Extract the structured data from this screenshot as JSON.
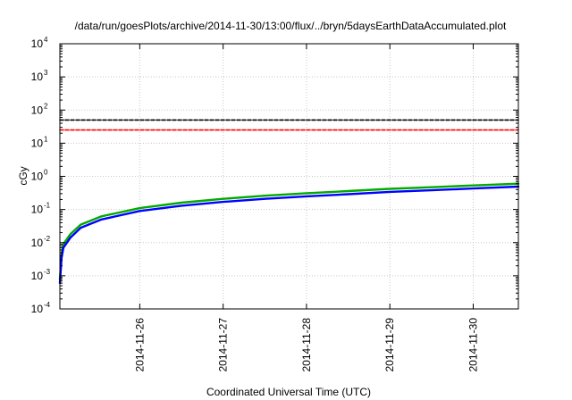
{
  "chart_data": {
    "type": "line",
    "title": "/data/run/goesPlots/archive/2014-11-30/13:00/flux/../bryn/5daysEarthDataAccumulated.plot",
    "xlabel": "Coordinated Universal Time (UTC)",
    "ylabel": "cGy",
    "x_scale": "time",
    "y_scale": "log",
    "xlim": [
      "2014-11-25 01:00",
      "2014-11-30 13:00"
    ],
    "ylim": [
      0.0001,
      10000
    ],
    "grid": true,
    "legend": "none",
    "x_ticks": [
      "2014-11-26",
      "2014-11-27",
      "2014-11-28",
      "2014-11-29",
      "2014-11-30"
    ],
    "y_ticks": [
      {
        "value": 0.0001,
        "base": "10",
        "exp": "-4"
      },
      {
        "value": 0.001,
        "base": "10",
        "exp": "-3"
      },
      {
        "value": 0.01,
        "base": "10",
        "exp": "-2"
      },
      {
        "value": 0.1,
        "base": "10",
        "exp": "-1"
      },
      {
        "value": 1,
        "base": "10",
        "exp": "0"
      },
      {
        "value": 10,
        "base": "10",
        "exp": "1"
      },
      {
        "value": 100,
        "base": "10",
        "exp": "2"
      },
      {
        "value": 1000,
        "base": "10",
        "exp": "3"
      },
      {
        "value": 10000,
        "base": "10",
        "exp": "4"
      }
    ],
    "series": [
      {
        "color": "#00aa00",
        "style": "solid",
        "x": [
          "2014-11-25 01:00",
          "2014-11-25 01:30",
          "2014-11-25 02:00",
          "2014-11-25 04:00",
          "2014-11-25 07:00",
          "2014-11-25 13:00",
          "2014-11-26 00:00",
          "2014-11-26 12:00",
          "2014-11-27 00:00",
          "2014-11-27 12:00",
          "2014-11-28 00:00",
          "2014-11-28 12:00",
          "2014-11-29 00:00",
          "2014-11-29 12:00",
          "2014-11-30 00:00",
          "2014-11-30 13:00"
        ],
        "values": [
          0.0008,
          0.0045,
          0.009,
          0.018,
          0.035,
          0.062,
          0.11,
          0.16,
          0.21,
          0.26,
          0.31,
          0.36,
          0.42,
          0.47,
          0.53,
          0.6
        ]
      },
      {
        "color": "#0000ff",
        "style": "solid",
        "x": [
          "2014-11-25 01:00",
          "2014-11-25 01:30",
          "2014-11-25 02:00",
          "2014-11-25 04:00",
          "2014-11-25 07:00",
          "2014-11-25 13:00",
          "2014-11-26 00:00",
          "2014-11-26 12:00",
          "2014-11-27 00:00",
          "2014-11-27 12:00",
          "2014-11-28 00:00",
          "2014-11-28 12:00",
          "2014-11-29 00:00",
          "2014-11-29 12:00",
          "2014-11-30 00:00",
          "2014-11-30 13:00"
        ],
        "values": [
          0.0006,
          0.0035,
          0.007,
          0.014,
          0.028,
          0.05,
          0.09,
          0.13,
          0.17,
          0.21,
          0.25,
          0.29,
          0.34,
          0.38,
          0.43,
          0.49
        ]
      },
      {
        "color": "#000000",
        "style": "dashed",
        "x": [
          "2014-11-25 01:00",
          "2014-11-30 13:00"
        ],
        "values": [
          50,
          50
        ]
      },
      {
        "color": "#ff0000",
        "style": "dashed",
        "x": [
          "2014-11-25 01:00",
          "2014-11-30 13:00"
        ],
        "values": [
          25,
          25
        ]
      }
    ]
  }
}
